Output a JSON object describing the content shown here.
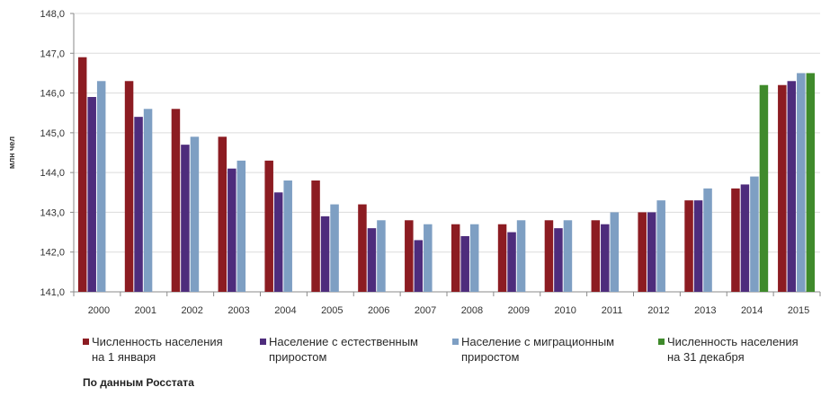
{
  "chart_data": {
    "type": "bar",
    "title": "",
    "xlabel": "",
    "ylabel": "млн чел",
    "categories": [
      "2000",
      "2001",
      "2002",
      "2003",
      "2004",
      "2005",
      "2006",
      "2007",
      "2008",
      "2009",
      "2010",
      "2011",
      "2012",
      "2013",
      "2014",
      "2015"
    ],
    "ylim": [
      141,
      148
    ],
    "yticks": [
      141,
      142,
      143,
      144,
      145,
      146,
      147,
      148
    ],
    "ytick_labels": [
      "141,0",
      "142,0",
      "143,0",
      "144,0",
      "145,0",
      "146,0",
      "147,0",
      "148,0"
    ],
    "grid": true,
    "legend": "bottom",
    "series": [
      {
        "name": "Численность населения на 1 января",
        "color": "#8c1c22",
        "values": [
          146.9,
          146.3,
          145.6,
          144.9,
          144.3,
          143.8,
          143.2,
          142.8,
          142.7,
          142.7,
          142.8,
          142.8,
          143.0,
          143.3,
          143.6,
          146.2
        ]
      },
      {
        "name": "Население с естественным приростом",
        "color": "#4e2c7c",
        "values": [
          145.9,
          145.4,
          144.7,
          144.1,
          143.5,
          142.9,
          142.6,
          142.3,
          142.4,
          142.5,
          142.6,
          142.7,
          143.0,
          143.3,
          143.7,
          146.3
        ]
      },
      {
        "name": "Население с миграционным приростом",
        "color": "#7e9fc3",
        "values": [
          146.3,
          145.6,
          144.9,
          144.3,
          143.8,
          143.2,
          142.8,
          142.7,
          142.7,
          142.8,
          142.8,
          143.0,
          143.3,
          143.6,
          143.9,
          146.5
        ]
      },
      {
        "name": "Численность населения на 31 декабря",
        "color": "#3f8a2b",
        "values": [
          null,
          null,
          null,
          null,
          null,
          null,
          null,
          null,
          null,
          null,
          null,
          null,
          null,
          null,
          146.2,
          146.5
        ]
      }
    ]
  },
  "source_note": "По данным Росстата"
}
